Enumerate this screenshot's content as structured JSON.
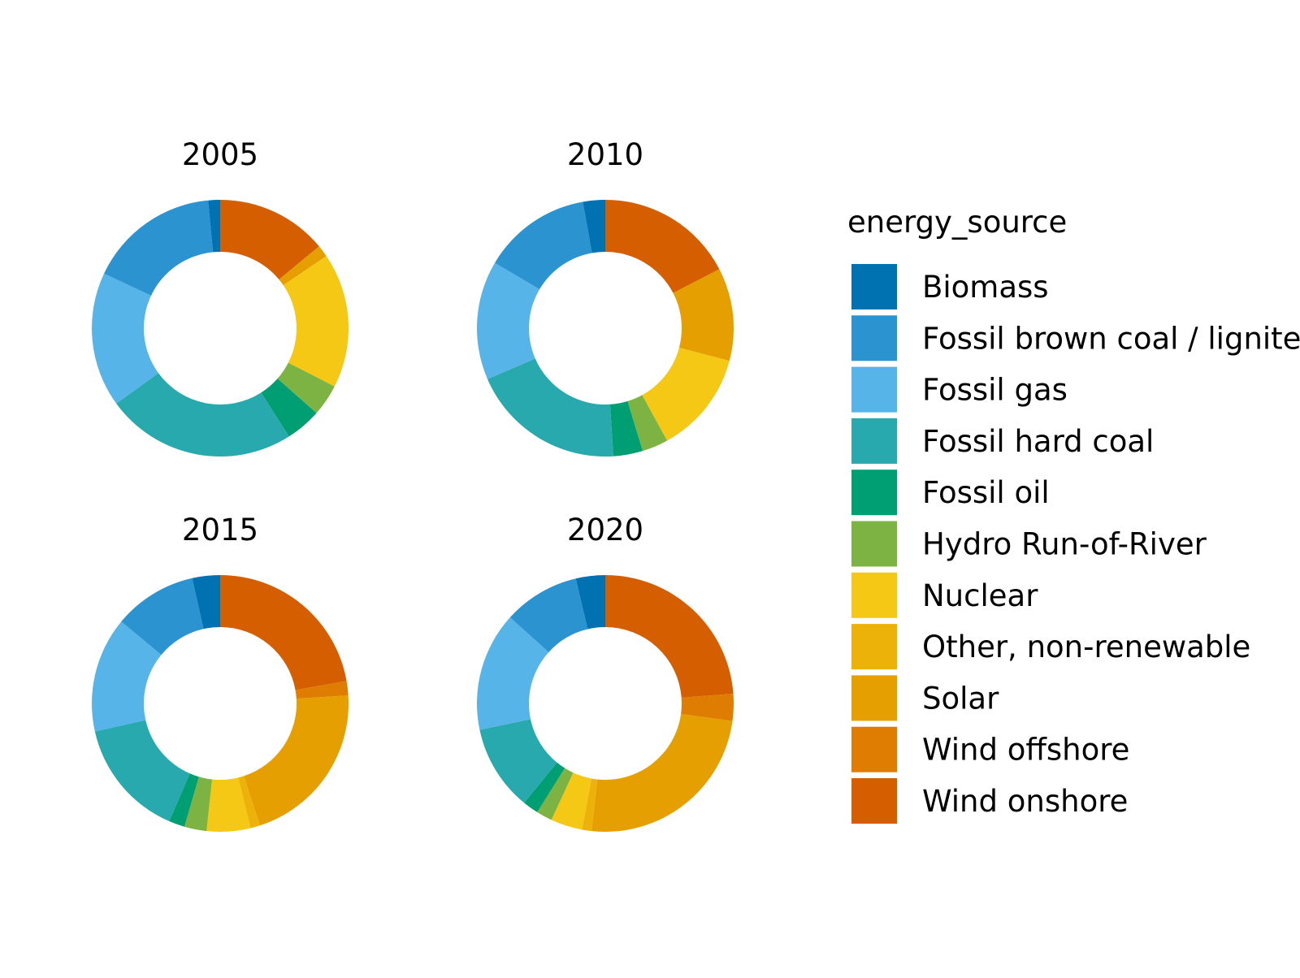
{
  "chart_data": {
    "type": "pie",
    "style": "donut",
    "facets": [
      {
        "title": "2005",
        "values": {
          "Biomass": 1.5,
          "Fossil brown coal / lignite": 16.5,
          "Fossil gas": 17.0,
          "Fossil hard coal": 24.0,
          "Fossil oil": 4.5,
          "Hydro Run-of-River": 4.0,
          "Nuclear": 17.0,
          "Other, non-renewable": 0.0,
          "Solar": 1.5,
          "Wind offshore": 0.0,
          "Wind onshore": 14.0
        }
      },
      {
        "title": "2010",
        "values": {
          "Biomass": 2.8,
          "Fossil brown coal / lignite": 13.7,
          "Fossil gas": 15.0,
          "Fossil hard coal": 19.5,
          "Fossil oil": 3.7,
          "Hydro Run-of-River": 3.3,
          "Nuclear": 12.9,
          "Other, non-renewable": 0.0,
          "Solar": 11.7,
          "Wind offshore": 0.0,
          "Wind onshore": 17.4
        }
      },
      {
        "title": "2015",
        "values": {
          "Biomass": 3.5,
          "Fossil brown coal / lignite": 10.5,
          "Fossil gas": 14.5,
          "Fossil hard coal": 15.0,
          "Fossil oil": 2.0,
          "Hydro Run-of-River": 2.8,
          "Nuclear": 5.5,
          "Other, non-renewable": 1.2,
          "Solar": 21.0,
          "Wind offshore": 1.8,
          "Wind onshore": 22.2
        }
      },
      {
        "title": "2020",
        "values": {
          "Biomass": 3.7,
          "Fossil brown coal / lignite": 9.6,
          "Fossil gas": 15.0,
          "Fossil hard coal": 10.8,
          "Fossil oil": 2.0,
          "Hydro Run-of-River": 2.0,
          "Nuclear": 4.0,
          "Other, non-renewable": 1.2,
          "Solar": 24.5,
          "Wind offshore": 3.4,
          "Wind onshore": 23.8
        }
      }
    ],
    "legend": {
      "title": "energy_source",
      "placement": "right",
      "entries": [
        {
          "label": "Biomass",
          "color": "#0072B2"
        },
        {
          "label": "Fossil brown coal / lignite",
          "color": "#2B93CF"
        },
        {
          "label": "Fossil gas",
          "color": "#56B4E9"
        },
        {
          "label": "Fossil hard coal",
          "color": "#28A9AE"
        },
        {
          "label": "Fossil oil",
          "color": "#009E73"
        },
        {
          "label": "Hydro Run-of-River",
          "color": "#7CB342"
        },
        {
          "label": "Nuclear",
          "color": "#F4C814"
        },
        {
          "label": "Other, non-renewable",
          "color": "#ECB20A"
        },
        {
          "label": "Solar",
          "color": "#E69F00"
        },
        {
          "label": "Wind offshore",
          "color": "#DF7D02"
        },
        {
          "label": "Wind onshore",
          "color": "#D55E00"
        }
      ]
    },
    "slice_order": "clockwise from top, starting at end of legend order (Wind onshore first)"
  }
}
